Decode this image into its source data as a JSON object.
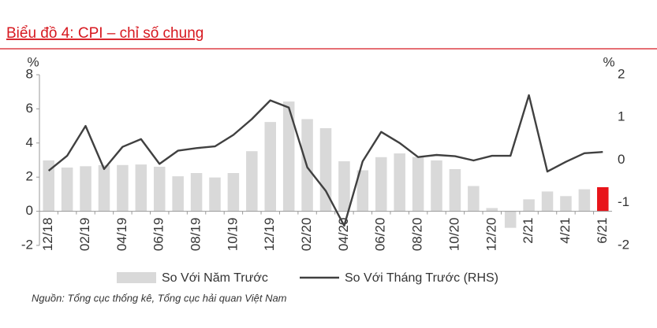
{
  "chart_data": {
    "type": "bar-line",
    "title": "Biểu đồ 4: CPI – chỉ số chung",
    "source": "Nguồn: Tổng cục thống kê, Tổng cục hải quan Việt Nam",
    "y_unit": "%",
    "y2_unit": "%",
    "categories": [
      "12/18",
      null,
      "02/19",
      null,
      "04/19",
      null,
      "06/19",
      null,
      "08/19",
      null,
      "10/19",
      null,
      "12/19",
      null,
      "02/20",
      null,
      "04/20",
      null,
      "06/20",
      null,
      "08/20",
      null,
      "10/20",
      null,
      "12/20",
      null,
      "2/21",
      null,
      "4/21",
      null,
      "6/21"
    ],
    "series": [
      {
        "name": "So Với Năm Trước",
        "type": "bar",
        "color": "#d9d9d9",
        "colors": [
          "#d9d9d9",
          "#d9d9d9",
          "#d9d9d9",
          "#d9d9d9",
          "#d9d9d9",
          "#d9d9d9",
          "#d9d9d9",
          "#d9d9d9",
          "#d9d9d9",
          "#d9d9d9",
          "#d9d9d9",
          "#d9d9d9",
          "#d9d9d9",
          "#d9d9d9",
          "#d9d9d9",
          "#d9d9d9",
          "#d9d9d9",
          "#d9d9d9",
          "#d9d9d9",
          "#d9d9d9",
          "#d9d9d9",
          "#d9d9d9",
          "#d9d9d9",
          "#d9d9d9",
          "#d9d9d9",
          "#d9d9d9",
          "#d9d9d9",
          "#d9d9d9",
          "#d9d9d9",
          "#d9d9d9",
          "#e8141a"
        ],
        "values": [
          2.98,
          2.56,
          2.64,
          2.7,
          2.71,
          2.74,
          2.61,
          2.05,
          2.24,
          1.98,
          2.24,
          3.52,
          5.23,
          6.43,
          5.4,
          4.87,
          2.93,
          2.4,
          3.17,
          3.39,
          3.18,
          2.98,
          2.47,
          1.48,
          0.19,
          -0.97,
          0.7,
          1.16,
          0.89,
          1.29,
          1.41
        ]
      },
      {
        "name": "So Với Tháng Trước (RHS)",
        "type": "line",
        "axis": "y2",
        "color": "#404040",
        "values": [
          -0.25,
          0.1,
          0.8,
          -0.21,
          0.31,
          0.49,
          -0.09,
          0.22,
          0.28,
          0.32,
          0.59,
          0.96,
          1.4,
          1.23,
          -0.17,
          -0.72,
          -1.54,
          -0.03,
          0.66,
          0.4,
          0.07,
          0.12,
          0.09,
          -0.01,
          0.1,
          0.1,
          1.52,
          -0.27,
          -0.04,
          0.16,
          0.19
        ]
      }
    ],
    "ylim": [
      -2,
      8
    ],
    "yticks": [
      -2,
      0,
      2,
      4,
      6,
      8
    ],
    "y2lim": [
      -2,
      2
    ],
    "y2ticks": [
      -2,
      -1,
      0,
      1,
      2
    ],
    "grid": false
  }
}
